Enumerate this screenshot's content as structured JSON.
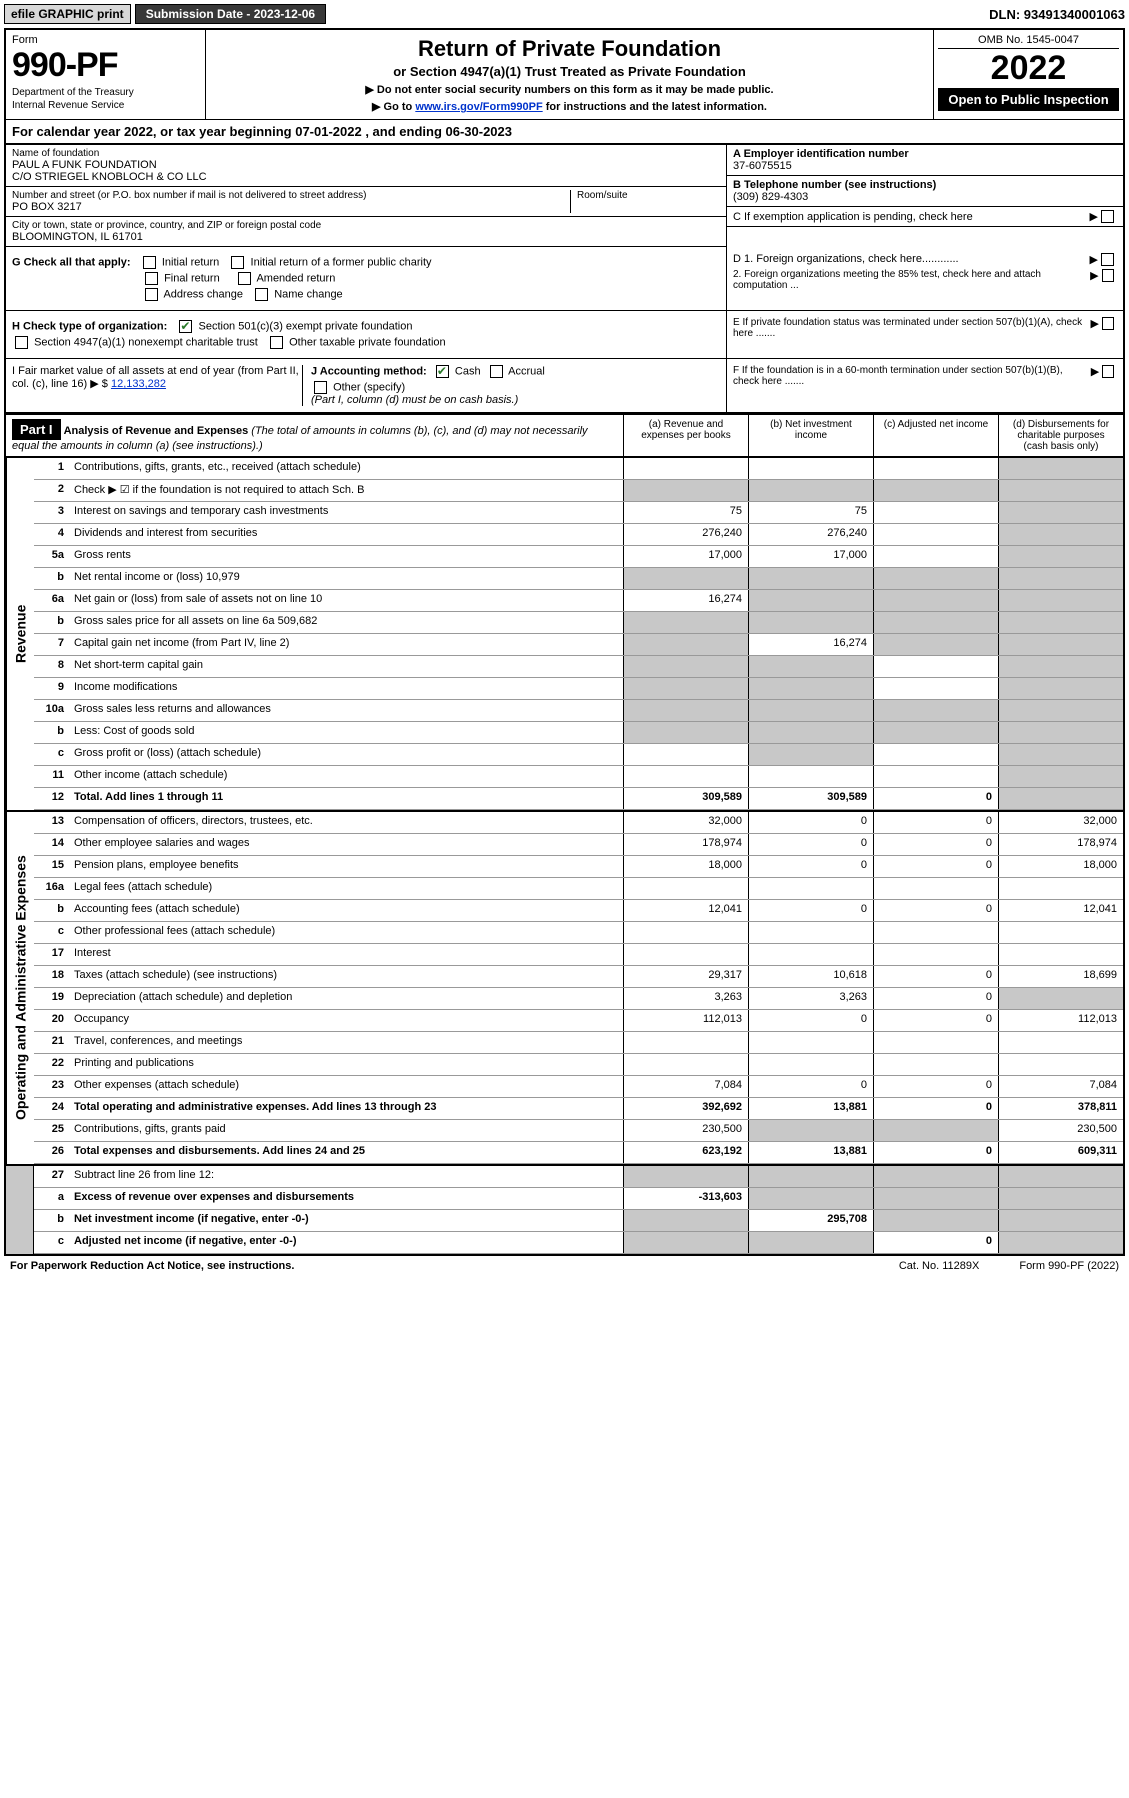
{
  "topbar": {
    "efile": "efile GRAPHIC print",
    "submission_label": "Submission Date - 2023-12-06",
    "dln": "DLN: 93491340001063"
  },
  "header": {
    "form_label": "Form",
    "form_number": "990-PF",
    "dept": "Department of the Treasury",
    "irs": "Internal Revenue Service",
    "title": "Return of Private Foundation",
    "subtitle": "or Section 4947(a)(1) Trust Treated as Private Foundation",
    "note1": "▶ Do not enter social security numbers on this form as it may be made public.",
    "note2_pre": "▶ Go to ",
    "note2_link": "www.irs.gov/Form990PF",
    "note2_post": " for instructions and the latest information.",
    "omb": "OMB No. 1545-0047",
    "year": "2022",
    "open": "Open to Public Inspection"
  },
  "calyear": "For calendar year 2022, or tax year beginning 07-01-2022                         , and ending 06-30-2023",
  "info": {
    "name_lbl": "Name of foundation",
    "name1": "PAUL A FUNK FOUNDATION",
    "name2": "C/O STRIEGEL KNOBLOCH & CO LLC",
    "addr_lbl": "Number and street (or P.O. box number if mail is not delivered to street address)",
    "addr": "PO BOX 3217",
    "room_lbl": "Room/suite",
    "city_lbl": "City or town, state or province, country, and ZIP or foreign postal code",
    "city": "BLOOMINGTON, IL  61701",
    "ein_lbl": "A Employer identification number",
    "ein": "37-6075515",
    "tel_lbl": "B Telephone number (see instructions)",
    "tel": "(309) 829-4303",
    "c_lbl": "C If exemption application is pending, check here",
    "d1": "D 1. Foreign organizations, check here............",
    "d2": "2. Foreign organizations meeting the 85% test, check here and attach computation ...",
    "e_lbl": "E  If private foundation status was terminated under section 507(b)(1)(A), check here .......",
    "f_lbl": "F  If the foundation is in a 60-month termination under section 507(b)(1)(B), check here .......",
    "g_lbl": "G Check all that apply:",
    "g_initial": "Initial return",
    "g_initial_former": "Initial return of a former public charity",
    "g_final": "Final return",
    "g_amended": "Amended return",
    "g_addr": "Address change",
    "g_name": "Name change",
    "h_lbl": "H Check type of organization:",
    "h_501": "Section 501(c)(3) exempt private foundation",
    "h_4947": "Section 4947(a)(1) nonexempt charitable trust",
    "h_other": "Other taxable private foundation",
    "i_lbl": "I Fair market value of all assets at end of year (from Part II, col. (c), line 16) ▶ $",
    "i_val": "12,133,282",
    "j_lbl": "J Accounting method:",
    "j_cash": "Cash",
    "j_accrual": "Accrual",
    "j_other": "Other (specify)",
    "j_note": "(Part I, column (d) must be on cash basis.)"
  },
  "part1": {
    "label": "Part I",
    "title": "Analysis of Revenue and Expenses",
    "title_note": " (The total of amounts in columns (b), (c), and (d) may not necessarily equal the amounts in column (a) (see instructions).)",
    "col_a": "(a)   Revenue and expenses per books",
    "col_b": "(b)   Net investment income",
    "col_c": "(c)   Adjusted net income",
    "col_d": "(d)   Disbursements for charitable purposes (cash basis only)"
  },
  "sections": {
    "revenue": "Revenue",
    "expenses": "Operating and Administrative Expenses"
  },
  "rows": [
    {
      "n": "1",
      "lbl": "Contributions, gifts, grants, etc., received (attach schedule)",
      "a": "",
      "b": "",
      "c": "",
      "d": "",
      "sh_d": true
    },
    {
      "n": "2",
      "lbl": "Check ▶ ☑ if the foundation is not required to attach Sch. B",
      "a": "",
      "b": "",
      "c": "",
      "d": "",
      "sh_a": true,
      "sh_b": true,
      "sh_c": true,
      "sh_d": true
    },
    {
      "n": "3",
      "lbl": "Interest on savings and temporary cash investments",
      "a": "75",
      "b": "75",
      "c": "",
      "d": "",
      "sh_d": true
    },
    {
      "n": "4",
      "lbl": "Dividends and interest from securities",
      "a": "276,240",
      "b": "276,240",
      "c": "",
      "d": "",
      "sh_d": true
    },
    {
      "n": "5a",
      "lbl": "Gross rents",
      "a": "17,000",
      "b": "17,000",
      "c": "",
      "d": "",
      "sh_d": true
    },
    {
      "n": "b",
      "lbl": "Net rental income or (loss)                           10,979",
      "a": "",
      "b": "",
      "c": "",
      "d": "",
      "sh_a": true,
      "sh_b": true,
      "sh_c": true,
      "sh_d": true
    },
    {
      "n": "6a",
      "lbl": "Net gain or (loss) from sale of assets not on line 10",
      "a": "16,274",
      "b": "",
      "c": "",
      "d": "",
      "sh_b": true,
      "sh_c": true,
      "sh_d": true
    },
    {
      "n": "b",
      "lbl": "Gross sales price for all assets on line 6a         509,682",
      "a": "",
      "b": "",
      "c": "",
      "d": "",
      "sh_a": true,
      "sh_b": true,
      "sh_c": true,
      "sh_d": true
    },
    {
      "n": "7",
      "lbl": "Capital gain net income (from Part IV, line 2)",
      "a": "",
      "b": "16,274",
      "c": "",
      "d": "",
      "sh_a": true,
      "sh_c": true,
      "sh_d": true
    },
    {
      "n": "8",
      "lbl": "Net short-term capital gain",
      "a": "",
      "b": "",
      "c": "",
      "d": "",
      "sh_a": true,
      "sh_b": true,
      "sh_d": true
    },
    {
      "n": "9",
      "lbl": "Income modifications",
      "a": "",
      "b": "",
      "c": "",
      "d": "",
      "sh_a": true,
      "sh_b": true,
      "sh_d": true
    },
    {
      "n": "10a",
      "lbl": "Gross sales less returns and allowances",
      "a": "",
      "b": "",
      "c": "",
      "d": "",
      "sh_a": true,
      "sh_b": true,
      "sh_c": true,
      "sh_d": true
    },
    {
      "n": "b",
      "lbl": "Less: Cost of goods sold",
      "a": "",
      "b": "",
      "c": "",
      "d": "",
      "sh_a": true,
      "sh_b": true,
      "sh_c": true,
      "sh_d": true
    },
    {
      "n": "c",
      "lbl": "Gross profit or (loss) (attach schedule)",
      "a": "",
      "b": "",
      "c": "",
      "d": "",
      "sh_b": true,
      "sh_d": true
    },
    {
      "n": "11",
      "lbl": "Other income (attach schedule)",
      "a": "",
      "b": "",
      "c": "",
      "d": "",
      "sh_d": true
    },
    {
      "n": "12",
      "lbl": "Total. Add lines 1 through 11",
      "a": "309,589",
      "b": "309,589",
      "c": "0",
      "d": "",
      "bold": true,
      "sh_d": true
    }
  ],
  "exp_rows": [
    {
      "n": "13",
      "lbl": "Compensation of officers, directors, trustees, etc.",
      "a": "32,000",
      "b": "0",
      "c": "0",
      "d": "32,000"
    },
    {
      "n": "14",
      "lbl": "Other employee salaries and wages",
      "a": "178,974",
      "b": "0",
      "c": "0",
      "d": "178,974"
    },
    {
      "n": "15",
      "lbl": "Pension plans, employee benefits",
      "a": "18,000",
      "b": "0",
      "c": "0",
      "d": "18,000"
    },
    {
      "n": "16a",
      "lbl": "Legal fees (attach schedule)",
      "a": "",
      "b": "",
      "c": "",
      "d": ""
    },
    {
      "n": "b",
      "lbl": "Accounting fees (attach schedule)",
      "a": "12,041",
      "b": "0",
      "c": "0",
      "d": "12,041"
    },
    {
      "n": "c",
      "lbl": "Other professional fees (attach schedule)",
      "a": "",
      "b": "",
      "c": "",
      "d": ""
    },
    {
      "n": "17",
      "lbl": "Interest",
      "a": "",
      "b": "",
      "c": "",
      "d": ""
    },
    {
      "n": "18",
      "lbl": "Taxes (attach schedule) (see instructions)",
      "a": "29,317",
      "b": "10,618",
      "c": "0",
      "d": "18,699"
    },
    {
      "n": "19",
      "lbl": "Depreciation (attach schedule) and depletion",
      "a": "3,263",
      "b": "3,263",
      "c": "0",
      "d": "",
      "sh_d": true
    },
    {
      "n": "20",
      "lbl": "Occupancy",
      "a": "112,013",
      "b": "0",
      "c": "0",
      "d": "112,013"
    },
    {
      "n": "21",
      "lbl": "Travel, conferences, and meetings",
      "a": "",
      "b": "",
      "c": "",
      "d": ""
    },
    {
      "n": "22",
      "lbl": "Printing and publications",
      "a": "",
      "b": "",
      "c": "",
      "d": ""
    },
    {
      "n": "23",
      "lbl": "Other expenses (attach schedule)",
      "a": "7,084",
      "b": "0",
      "c": "0",
      "d": "7,084"
    },
    {
      "n": "24",
      "lbl": "Total operating and administrative expenses. Add lines 13 through 23",
      "a": "392,692",
      "b": "13,881",
      "c": "0",
      "d": "378,811",
      "bold": true
    },
    {
      "n": "25",
      "lbl": "Contributions, gifts, grants paid",
      "a": "230,500",
      "b": "",
      "c": "",
      "d": "230,500",
      "sh_b": true,
      "sh_c": true
    },
    {
      "n": "26",
      "lbl": "Total expenses and disbursements. Add lines 24 and 25",
      "a": "623,192",
      "b": "13,881",
      "c": "0",
      "d": "609,311",
      "bold": true
    }
  ],
  "final_rows": [
    {
      "n": "27",
      "lbl": "Subtract line 26 from line 12:",
      "a": "",
      "b": "",
      "c": "",
      "d": "",
      "sh_a": true,
      "sh_b": true,
      "sh_c": true,
      "sh_d": true
    },
    {
      "n": "a",
      "lbl": "Excess of revenue over expenses and disbursements",
      "a": "-313,603",
      "b": "",
      "c": "",
      "d": "",
      "bold": true,
      "sh_b": true,
      "sh_c": true,
      "sh_d": true
    },
    {
      "n": "b",
      "lbl": "Net investment income (if negative, enter -0-)",
      "a": "",
      "b": "295,708",
      "c": "",
      "d": "",
      "bold": true,
      "sh_a": true,
      "sh_c": true,
      "sh_d": true
    },
    {
      "n": "c",
      "lbl": "Adjusted net income (if negative, enter -0-)",
      "a": "",
      "b": "",
      "c": "0",
      "d": "",
      "bold": true,
      "sh_a": true,
      "sh_b": true,
      "sh_d": true
    }
  ],
  "footer": {
    "left": "For Paperwork Reduction Act Notice, see instructions.",
    "mid": "Cat. No. 11289X",
    "right": "Form 990-PF (2022)"
  }
}
